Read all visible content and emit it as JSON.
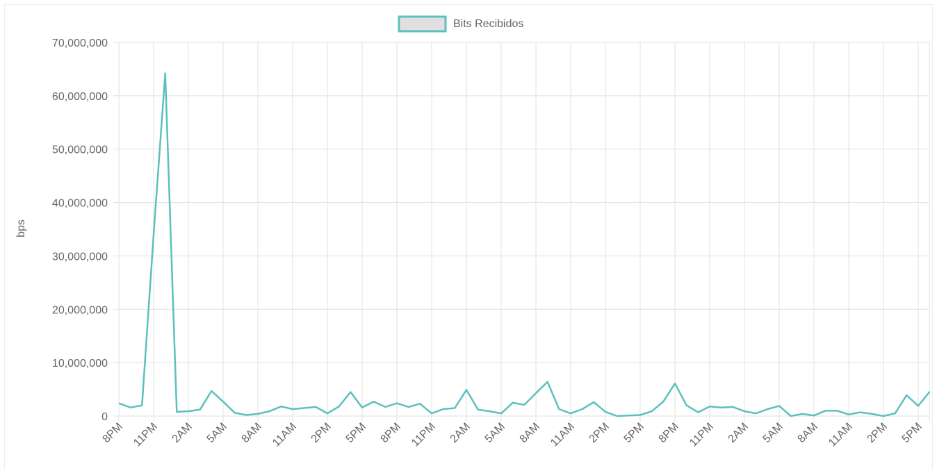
{
  "chart_data": {
    "type": "line",
    "ylabel": "bps",
    "ylim": [
      0,
      70000000
    ],
    "y_ticks": [
      0,
      10000000,
      20000000,
      30000000,
      40000000,
      50000000,
      60000000,
      70000000
    ],
    "grid": true,
    "legend_position": "top-center",
    "x_tick_labels": [
      "8PM",
      "11PM",
      "2AM",
      "5AM",
      "8AM",
      "11AM",
      "2PM",
      "5PM",
      "8PM",
      "11PM",
      "2AM",
      "5AM",
      "8AM",
      "11AM",
      "2PM",
      "5PM",
      "8PM",
      "11PM",
      "2AM",
      "5AM",
      "8AM",
      "11AM",
      "2PM",
      "5PM"
    ],
    "series": [
      {
        "name": "Bits Recibidos",
        "color": "#5bc0be",
        "fill": "#e0e0e0",
        "values": [
          2400000,
          1600000,
          2000000,
          34000000,
          64200000,
          800000,
          900000,
          1200000,
          4700000,
          2700000,
          600000,
          200000,
          400000,
          900000,
          1800000,
          1300000,
          1500000,
          1700000,
          500000,
          1800000,
          4500000,
          1600000,
          2700000,
          1700000,
          2400000,
          1700000,
          2300000,
          500000,
          1300000,
          1500000,
          4900000,
          1200000,
          900000,
          500000,
          2500000,
          2100000,
          4300000,
          6400000,
          1300000,
          500000,
          1300000,
          2600000,
          800000,
          0,
          100000,
          200000,
          900000,
          2700000,
          6100000,
          2000000,
          700000,
          1800000,
          1600000,
          1700000,
          900000,
          500000,
          1300000,
          1900000,
          0,
          400000,
          100000,
          1000000,
          1000000,
          300000,
          700000,
          400000,
          0,
          500000,
          3900000,
          1900000,
          4600000
        ]
      }
    ]
  }
}
